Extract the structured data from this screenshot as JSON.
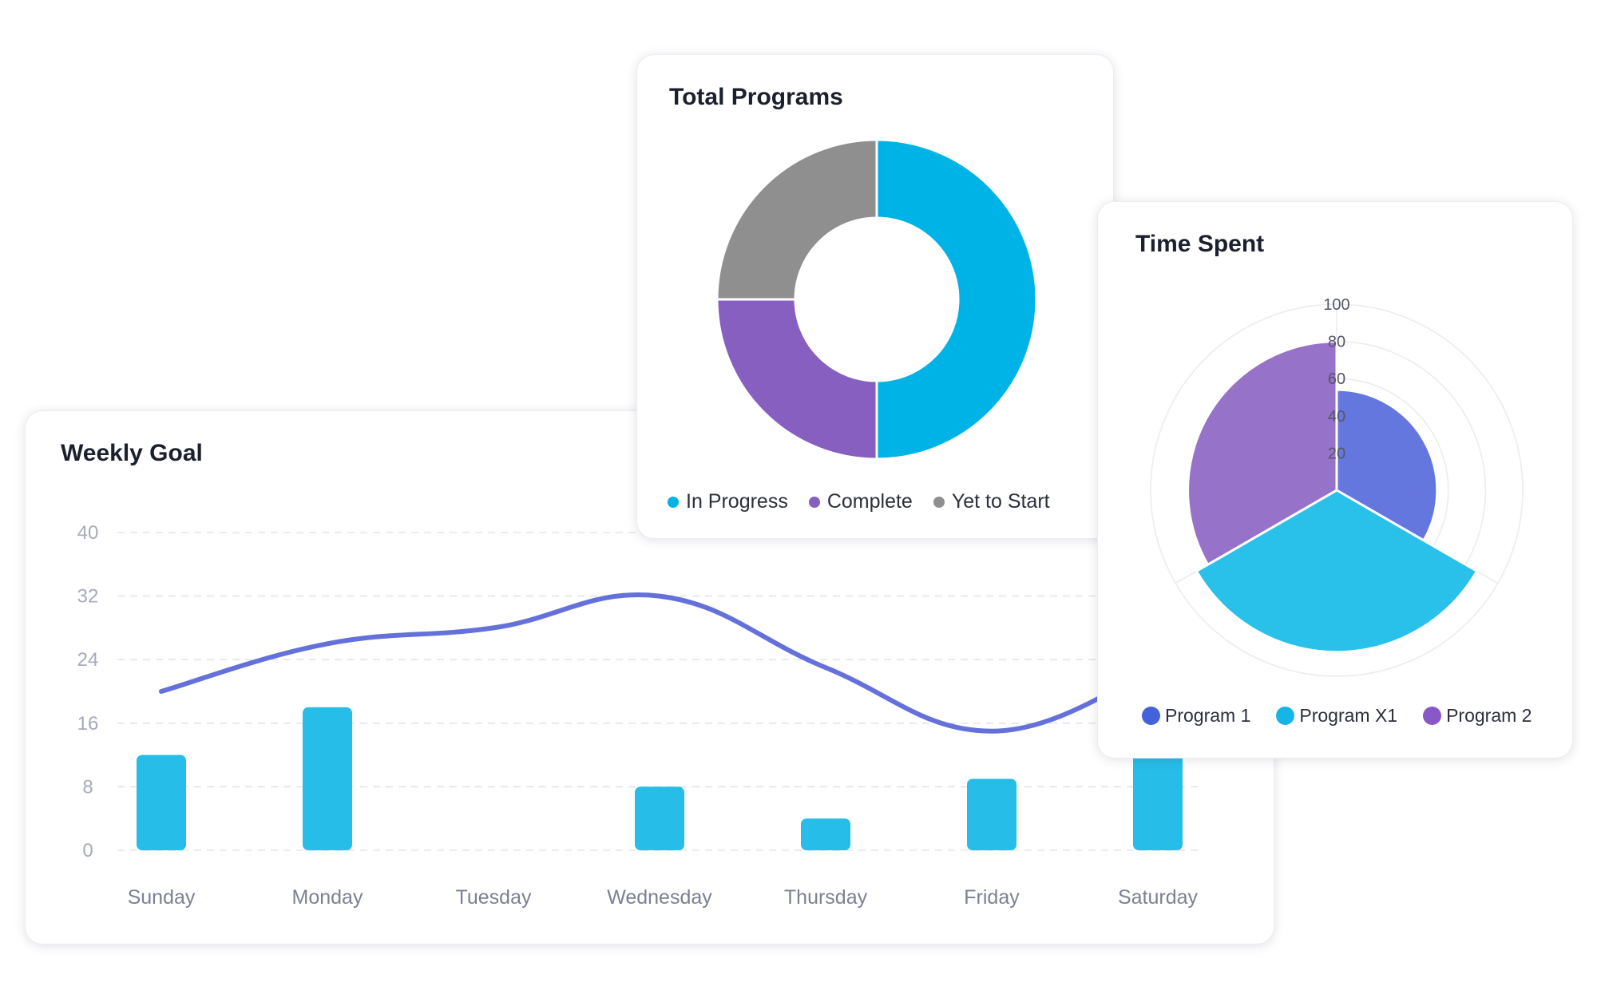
{
  "cards": {
    "weekly": {
      "title": "Weekly Goal"
    },
    "programs": {
      "title": "Total Programs"
    },
    "timespent": {
      "title": "Time Spent"
    }
  },
  "chart_data": [
    {
      "type": "bar",
      "title": "Weekly Goal",
      "categories": [
        "Sunday",
        "Monday",
        "Tuesday",
        "Wednesday",
        "Thursday",
        "Friday",
        "Saturday"
      ],
      "series": [
        {
          "type": "bar",
          "values": [
            12,
            18,
            0,
            8,
            4,
            9,
            20
          ],
          "color": "#26bde8"
        },
        {
          "type": "line",
          "values": [
            20,
            26,
            28,
            32,
            23,
            15,
            23
          ],
          "color": "#6471db"
        }
      ],
      "yticks": [
        0,
        8,
        16,
        24,
        32,
        40
      ],
      "ylim": [
        0,
        40
      ],
      "grid": true
    },
    {
      "type": "pie",
      "title": "Total Programs",
      "donut": true,
      "labels": [
        "In Progress",
        "Complete",
        "Yet to Start"
      ],
      "values": [
        50,
        25,
        25
      ],
      "colors": [
        "#00b3e6",
        "#865fc1",
        "#8f8f8f"
      ],
      "legend_position": "bottom"
    },
    {
      "type": "polar-area",
      "title": "Time Spent",
      "labels": [
        "Program 1",
        "Program X1",
        "Program 2"
      ],
      "values": [
        54,
        87,
        80
      ],
      "colors": [
        "#5a6fdc",
        "#1cbce8",
        "#9069c6"
      ],
      "legend_colors": [
        "#4463db",
        "#15b6e6",
        "#8857c8"
      ],
      "rticks": [
        20,
        40,
        60,
        80,
        100
      ],
      "rlim": [
        0,
        100
      ],
      "legend_position": "bottom"
    }
  ]
}
